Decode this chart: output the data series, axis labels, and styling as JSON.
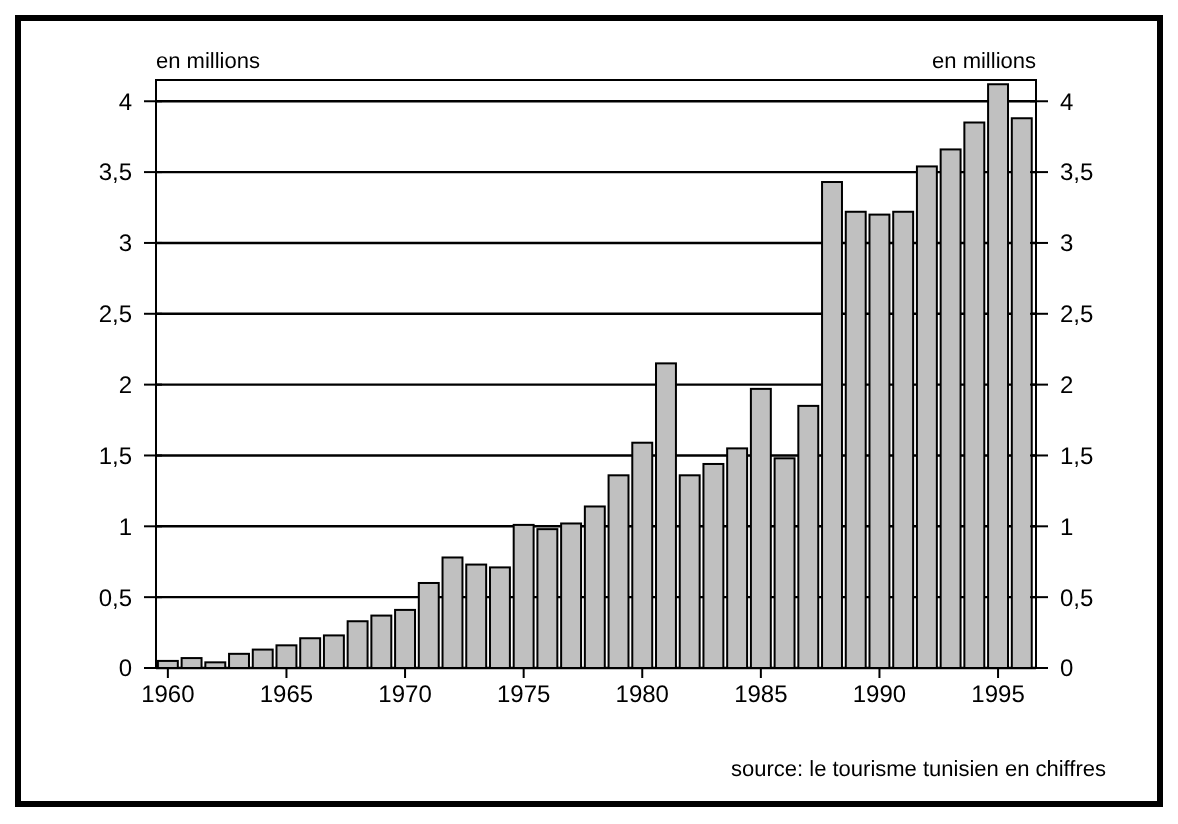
{
  "chart_data": {
    "type": "bar",
    "ylabel": "en millions",
    "y2label": "en millions",
    "annotations": [
      "source: le tourisme tunisien en chiffres"
    ],
    "x": [
      1960,
      1961,
      1962,
      1963,
      1964,
      1965,
      1966,
      1967,
      1968,
      1969,
      1970,
      1971,
      1972,
      1973,
      1974,
      1975,
      1976,
      1977,
      1978,
      1979,
      1980,
      1981,
      1982,
      1983,
      1984,
      1985,
      1986,
      1987,
      1988,
      1989,
      1990,
      1991,
      1992,
      1993,
      1994,
      1995,
      1996
    ],
    "series": [
      {
        "color": "#c0c0c0",
        "values": [
          0.05,
          0.07,
          0.04,
          0.1,
          0.13,
          0.16,
          0.21,
          0.23,
          0.33,
          0.37,
          0.41,
          0.6,
          0.78,
          0.73,
          0.71,
          1.01,
          0.98,
          1.02,
          1.14,
          1.36,
          1.59,
          2.15,
          1.36,
          1.44,
          1.55,
          1.97,
          1.48,
          1.85,
          3.43,
          3.22,
          3.2,
          3.22,
          3.54,
          3.66,
          3.85,
          4.12,
          3.88
        ]
      }
    ],
    "xlim": [
      1959.5,
      1996.6
    ],
    "xticks": [
      1960,
      1965,
      1970,
      1975,
      1980,
      1985,
      1990,
      1995
    ],
    "ylim": [
      0,
      4.15
    ],
    "yticks": [
      0,
      {
        "value": 0.5,
        "label": "0,5"
      },
      1,
      {
        "value": 1.5,
        "label": "1,5"
      },
      2,
      {
        "value": 2.5,
        "label": "2,5"
      },
      3,
      {
        "value": 3.5,
        "label": "3,5"
      },
      4
    ],
    "y2lim": [
      0,
      4.15
    ],
    "y2ticks": [
      0,
      {
        "value": 0.5,
        "label": "0,5"
      },
      1,
      {
        "value": 1.5,
        "label": "1,5"
      },
      2,
      {
        "value": 2.5,
        "label": "2,5"
      },
      3,
      {
        "value": 3.5,
        "label": "3,5"
      },
      4
    ],
    "grid": "y"
  }
}
